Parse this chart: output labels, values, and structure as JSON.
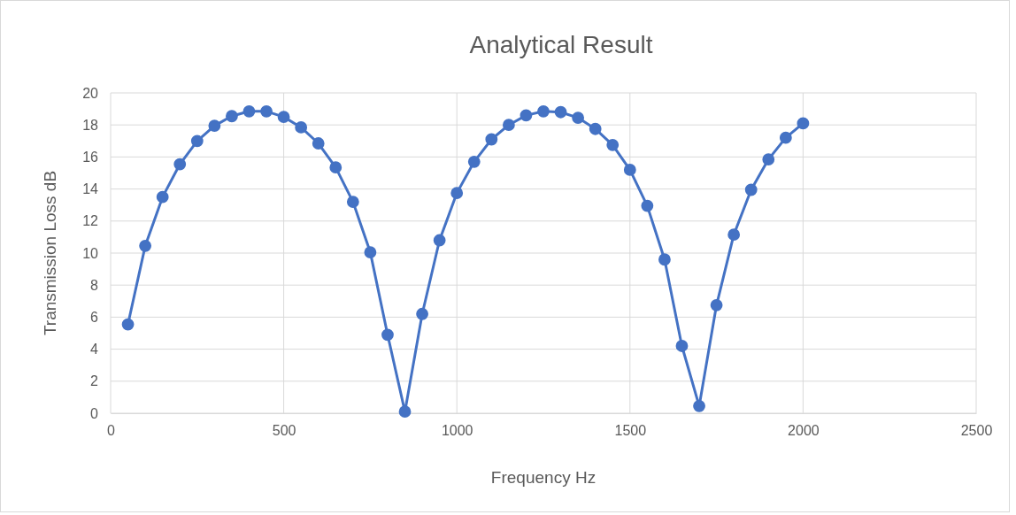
{
  "chart_data": {
    "type": "line",
    "title": "Analytical Result",
    "xlabel": "Frequency Hz",
    "ylabel": "Transmission Loss dB",
    "x": [
      50,
      100,
      150,
      200,
      250,
      300,
      350,
      400,
      450,
      500,
      550,
      600,
      650,
      700,
      750,
      800,
      850,
      900,
      950,
      1000,
      1050,
      1100,
      1150,
      1200,
      1250,
      1300,
      1350,
      1400,
      1450,
      1500,
      1550,
      1600,
      1650,
      1700,
      1750,
      1800,
      1850,
      1900,
      1950,
      2000
    ],
    "series": [
      {
        "color": "#4472c4",
        "values": [
          5.55,
          10.45,
          13.5,
          15.55,
          17.0,
          17.95,
          18.55,
          18.85,
          18.85,
          18.5,
          17.85,
          16.85,
          15.35,
          13.2,
          10.05,
          4.9,
          0.1,
          6.2,
          10.8,
          13.75,
          15.7,
          17.1,
          18.0,
          18.6,
          18.85,
          18.8,
          18.45,
          17.75,
          16.75,
          15.2,
          12.95,
          9.6,
          4.2,
          0.45,
          6.75,
          11.15,
          13.95,
          15.85,
          17.2,
          18.1
        ]
      }
    ],
    "xlim": [
      0,
      2500
    ],
    "xticks": [
      0,
      500,
      1000,
      1500,
      2000,
      2500
    ],
    "ylim": [
      0,
      20
    ],
    "yticks": [
      0,
      2,
      4,
      6,
      8,
      10,
      12,
      14,
      16,
      18,
      20
    ],
    "grid": true,
    "marker": "circle",
    "line_style": "solid"
  }
}
